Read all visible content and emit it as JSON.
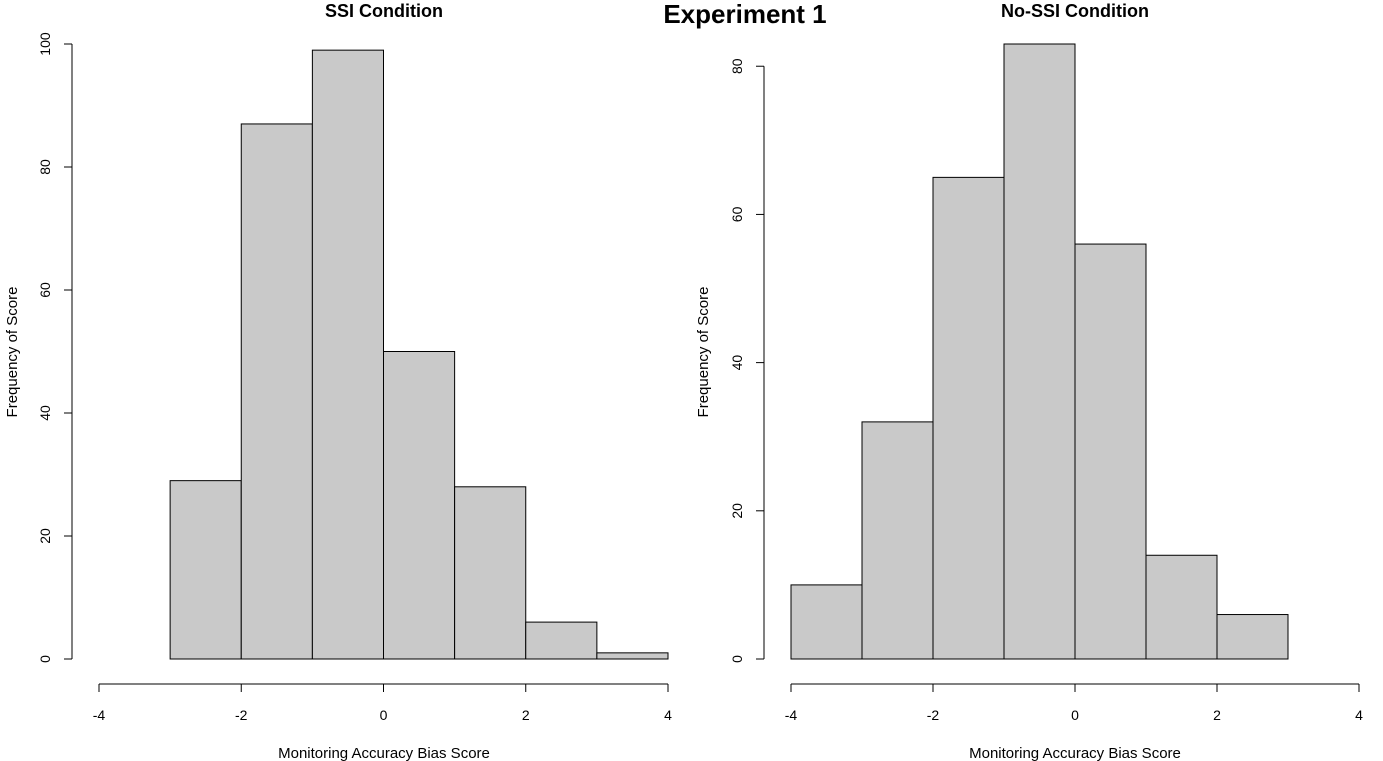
{
  "main_title": "Experiment 1",
  "chart_data": [
    {
      "type": "bar",
      "title": "SSI Condition",
      "xlabel": "Monitoring Accuracy Bias Score",
      "ylabel": "Frequency of Score",
      "bins": [
        [
          -3,
          -2
        ],
        [
          -2,
          -1
        ],
        [
          -1,
          0
        ],
        [
          0,
          1
        ],
        [
          1,
          2
        ],
        [
          2,
          3
        ],
        [
          3,
          4
        ]
      ],
      "values": [
        29,
        87,
        99,
        50,
        28,
        6,
        1
      ],
      "xlim": [
        -4,
        4
      ],
      "ylim": [
        0,
        100
      ],
      "x_ticks": [
        -4,
        -2,
        0,
        2,
        4
      ],
      "x_tick_labels": [
        "-4",
        "-2",
        "0",
        "2",
        "4"
      ],
      "y_ticks": [
        0,
        20,
        40,
        60,
        80,
        100
      ],
      "y_tick_labels": [
        "0",
        "20",
        "40",
        "60",
        "80",
        "100"
      ],
      "bar_color": "#c9c9c9",
      "grid": false
    },
    {
      "type": "bar",
      "title": "No-SSI Condition",
      "xlabel": "Monitoring Accuracy Bias Score",
      "ylabel": "Frequency of Score",
      "bins": [
        [
          -4,
          -3
        ],
        [
          -3,
          -2
        ],
        [
          -2,
          -1
        ],
        [
          -1,
          0
        ],
        [
          0,
          1
        ],
        [
          1,
          2
        ],
        [
          2,
          3
        ]
      ],
      "values": [
        10,
        32,
        65,
        83,
        56,
        14,
        6
      ],
      "xlim": [
        -4,
        4
      ],
      "ylim": [
        0,
        80
      ],
      "x_ticks": [
        -4,
        -2,
        0,
        2,
        4
      ],
      "x_tick_labels": [
        "-4",
        "-2",
        "0",
        "2",
        "4"
      ],
      "y_ticks": [
        0,
        20,
        40,
        60,
        80
      ],
      "y_tick_labels": [
        "0",
        "20",
        "40",
        "60",
        "80"
      ],
      "bar_color": "#c9c9c9",
      "grid": false
    }
  ]
}
